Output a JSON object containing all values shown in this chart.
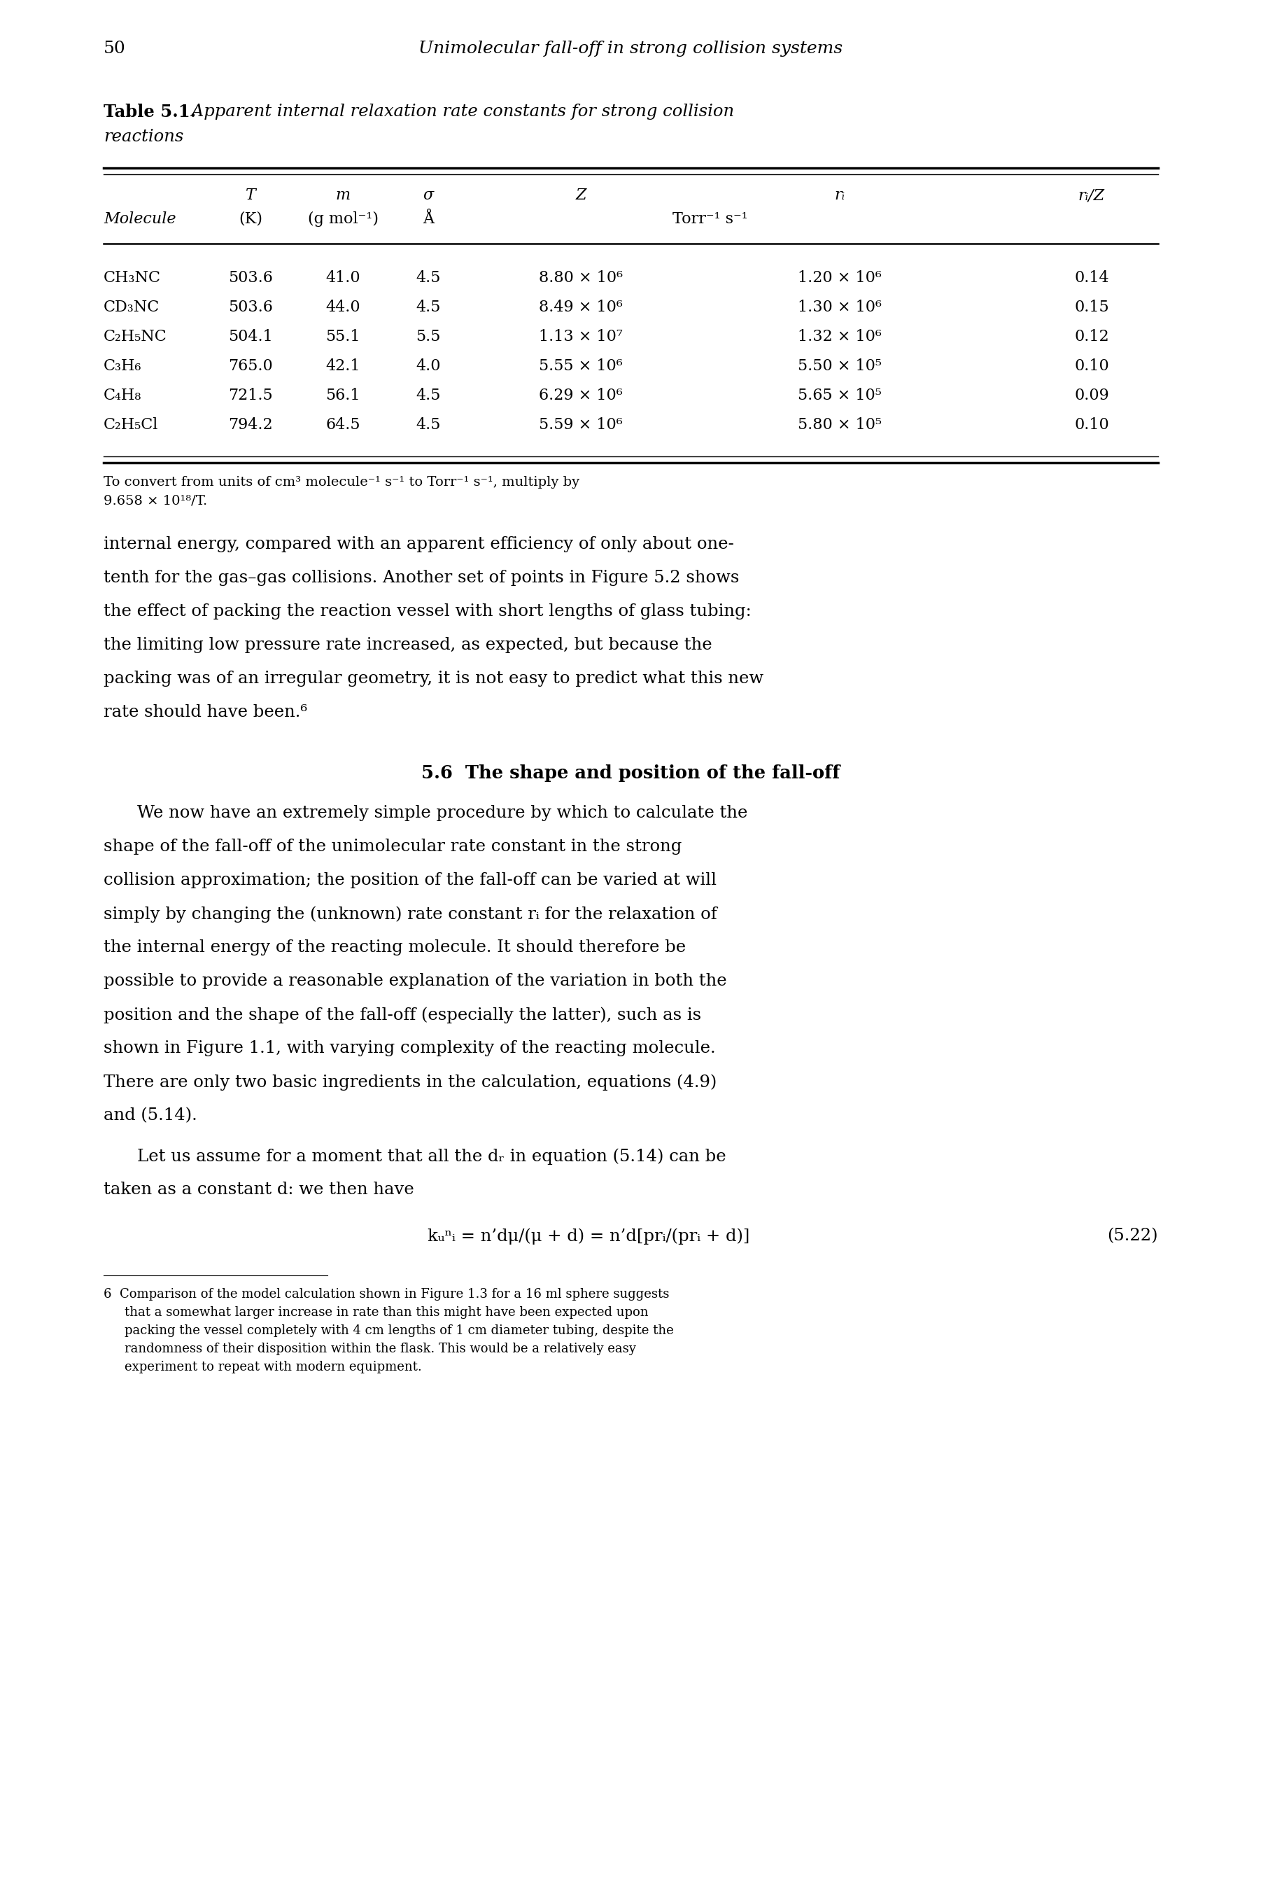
{
  "page_number": "50",
  "header_title": "Unimolecular fall-off in strong collision systems",
  "table_caption_bold": "Table 5.1.",
  "table_caption_italic": " Apparent internal relaxation rate constants for strong collision",
  "table_caption_italic2": "reactions",
  "col_h1_T": "T",
  "col_h1_m": "m",
  "col_h1_sigma": "σ",
  "col_h1_Z": "Z",
  "col_h1_ri": "rᵢ",
  "col_h1_riZ": "rᵢ/Z",
  "col_h2_mol": "Molecule",
  "col_h2_K": "(K)",
  "col_h2_gmol": "(g mol⁻¹)",
  "col_h2_A": "Å",
  "col_h2_units": "Torr⁻¹ s⁻¹",
  "table_data": [
    [
      "CH₃NC",
      "503.6",
      "41.0",
      "4.5",
      "8.80 × 10⁶",
      "1.20 × 10⁶",
      "0.14"
    ],
    [
      "CD₃NC",
      "503.6",
      "44.0",
      "4.5",
      "8.49 × 10⁶",
      "1.30 × 10⁶",
      "0.15"
    ],
    [
      "C₂H₅NC",
      "504.1",
      "55.1",
      "5.5",
      "1.13 × 10⁷",
      "1.32 × 10⁶",
      "0.12"
    ],
    [
      "C₃H₆",
      "765.0",
      "42.1",
      "4.0",
      "5.55 × 10⁶",
      "5.50 × 10⁵",
      "0.10"
    ],
    [
      "C₄H₈",
      "721.5",
      "56.1",
      "4.5",
      "6.29 × 10⁶",
      "5.65 × 10⁵",
      "0.09"
    ],
    [
      "C₂H₅Cl",
      "794.2",
      "64.5",
      "4.5",
      "5.59 × 10⁶",
      "5.80 × 10⁵",
      "0.10"
    ]
  ],
  "footnote_line1": "To convert from units of cm³ molecule⁻¹ s⁻¹ to Torr⁻¹ s⁻¹, multiply by",
  "footnote_line2": "9.658 × 10¹⁸/T.",
  "para1_lines": [
    "internal energy, compared with an apparent efficiency of only about one-",
    "tenth for the gas–gas collisions. Another set of points in Figure 5.2 shows",
    "the effect of packing the reaction vessel with short lengths of glass tubing:",
    "the limiting low pressure rate increased, as expected, but because the",
    "packing was of an irregular geometry, it is not easy to predict what this new",
    "rate should have been.⁶"
  ],
  "section_heading": "5.6  The shape and position of the fall-off",
  "para2_lines": [
    "We now have an extremely simple procedure by which to calculate the",
    "shape of the fall-off of the unimolecular rate constant in the strong",
    "collision approximation; the position of the fall-off can be varied at will",
    "simply by changing the (unknown) rate constant rᵢ for the relaxation of",
    "the internal energy of the reacting molecule. It should therefore be",
    "possible to provide a reasonable explanation of the variation in both the",
    "position and the shape of the fall-off (especially the latter), such as is",
    "shown in Figure 1.1, with varying complexity of the reacting molecule.",
    "There are only two basic ingredients in the calculation, equations (4.9)",
    "and (5.14)."
  ],
  "para3_lines": [
    "Let us assume for a moment that all the dᵣ in equation (5.14) can be",
    "taken as a constant d: we then have"
  ],
  "equation": "kᵤⁿᵢ = n’dμ/(μ + d) = n’d[prᵢ/(prᵢ + d)]",
  "eq_number": "(5.22)",
  "fn6_lines": [
    "6  Comparison of the model calculation shown in Figure 1.3 for a 16 ml sphere suggests",
    "that a somewhat larger increase in rate than this might have been expected upon",
    "packing the vessel completely with 4 cm lengths of 1 cm diameter tubing, despite the",
    "randomness of their disposition within the flask. This would be a relatively easy",
    "experiment to repeat with modern equipment."
  ]
}
